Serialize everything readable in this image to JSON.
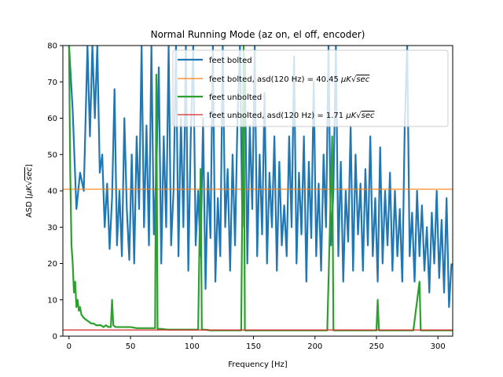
{
  "chart_data": {
    "type": "line",
    "title": "Normal Running Mode (az on, el off, encoder)",
    "xlabel": "Frequency [Hz]",
    "ylabel_main": "ASD [",
    "ylabel_mu": "μ",
    "ylabel_unit": "K",
    "ylabel_sqrt": "√",
    "ylabel_sec": "sec",
    "ylabel_close": "]",
    "xlim": [
      -5,
      312
    ],
    "ylim": [
      0,
      80
    ],
    "x_ticks": [
      0,
      50,
      100,
      150,
      200,
      250,
      300
    ],
    "y_ticks": [
      0,
      10,
      20,
      30,
      40,
      50,
      60,
      70,
      80
    ],
    "x_tick_labels": [
      "0",
      "50",
      "100",
      "150",
      "200",
      "250",
      "300"
    ],
    "y_tick_labels": [
      "0",
      "10",
      "20",
      "30",
      "40",
      "50",
      "60",
      "70",
      "80"
    ],
    "legend_position": "upper-right",
    "grid": false,
    "series": [
      {
        "name": "feet bolted",
        "color": "#1f77b4",
        "points": [
          [
            0,
            80
          ],
          [
            3,
            62
          ],
          [
            6,
            35
          ],
          [
            9,
            45
          ],
          [
            12,
            40
          ],
          [
            15,
            80
          ],
          [
            17,
            55
          ],
          [
            19,
            80
          ],
          [
            21,
            60
          ],
          [
            23,
            80
          ],
          [
            25,
            45
          ],
          [
            27,
            50
          ],
          [
            29,
            30
          ],
          [
            31,
            42
          ],
          [
            33,
            24
          ],
          [
            35,
            38
          ],
          [
            37,
            68
          ],
          [
            39,
            25
          ],
          [
            41,
            40
          ],
          [
            43,
            22
          ],
          [
            45,
            60
          ],
          [
            47,
            35
          ],
          [
            49,
            21
          ],
          [
            51,
            50
          ],
          [
            53,
            20
          ],
          [
            55,
            55
          ],
          [
            57,
            35
          ],
          [
            59,
            80
          ],
          [
            61,
            30
          ],
          [
            63,
            58
          ],
          [
            65,
            25
          ],
          [
            67,
            80
          ],
          [
            69,
            28
          ],
          [
            71,
            45
          ],
          [
            73,
            74
          ],
          [
            75,
            20
          ],
          [
            77,
            55
          ],
          [
            79,
            30
          ],
          [
            81,
            80
          ],
          [
            83,
            25
          ],
          [
            85,
            40
          ],
          [
            87,
            80
          ],
          [
            89,
            22
          ],
          [
            91,
            60
          ],
          [
            93,
            30
          ],
          [
            95,
            80
          ],
          [
            97,
            18
          ],
          [
            99,
            55
          ],
          [
            101,
            80
          ],
          [
            103,
            25
          ],
          [
            105,
            40
          ],
          [
            107,
            22
          ],
          [
            109,
            60
          ],
          [
            111,
            13
          ],
          [
            113,
            45
          ],
          [
            115,
            27
          ],
          [
            117,
            80
          ],
          [
            119,
            15
          ],
          [
            121,
            38
          ],
          [
            123,
            22
          ],
          [
            125,
            80
          ],
          [
            127,
            30
          ],
          [
            129,
            46
          ],
          [
            131,
            18
          ],
          [
            133,
            50
          ],
          [
            135,
            25
          ],
          [
            137,
            60
          ],
          [
            139,
            80
          ],
          [
            141,
            30
          ],
          [
            143,
            76
          ],
          [
            145,
            20
          ],
          [
            147,
            58
          ],
          [
            149,
            35
          ],
          [
            151,
            80
          ],
          [
            153,
            22
          ],
          [
            155,
            50
          ],
          [
            157,
            28
          ],
          [
            159,
            67
          ],
          [
            161,
            20
          ],
          [
            163,
            45
          ],
          [
            165,
            30
          ],
          [
            167,
            55
          ],
          [
            169,
            18
          ],
          [
            171,
            48
          ],
          [
            173,
            25
          ],
          [
            175,
            36
          ],
          [
            177,
            22
          ],
          [
            179,
            55
          ],
          [
            181,
            30
          ],
          [
            183,
            77
          ],
          [
            185,
            20
          ],
          [
            187,
            45
          ],
          [
            189,
            28
          ],
          [
            191,
            55
          ],
          [
            193,
            15
          ],
          [
            195,
            48
          ],
          [
            197,
            27
          ],
          [
            199,
            70
          ],
          [
            201,
            22
          ],
          [
            203,
            42
          ],
          [
            205,
            18
          ],
          [
            207,
            50
          ],
          [
            209,
            30
          ],
          [
            211,
            80
          ],
          [
            213,
            25
          ],
          [
            215,
            40
          ],
          [
            217,
            80
          ],
          [
            219,
            22
          ],
          [
            221,
            48
          ],
          [
            223,
            15
          ],
          [
            225,
            40
          ],
          [
            227,
            26
          ],
          [
            229,
            58
          ],
          [
            231,
            18
          ],
          [
            233,
            50
          ],
          [
            235,
            28
          ],
          [
            237,
            42
          ],
          [
            239,
            18
          ],
          [
            241,
            46
          ],
          [
            243,
            25
          ],
          [
            245,
            55
          ],
          [
            247,
            22
          ],
          [
            249,
            38
          ],
          [
            251,
            15
          ],
          [
            253,
            52
          ],
          [
            255,
            20
          ],
          [
            257,
            40
          ],
          [
            259,
            25
          ],
          [
            261,
            45
          ],
          [
            263,
            18
          ],
          [
            265,
            40
          ],
          [
            267,
            22
          ],
          [
            269,
            35
          ],
          [
            271,
            15
          ],
          [
            273,
            58
          ],
          [
            275,
            80
          ],
          [
            277,
            22
          ],
          [
            279,
            34
          ],
          [
            281,
            15
          ],
          [
            283,
            40
          ],
          [
            285,
            22
          ],
          [
            287,
            36
          ],
          [
            289,
            18
          ],
          [
            291,
            30
          ],
          [
            293,
            12
          ],
          [
            295,
            34
          ],
          [
            297,
            20
          ],
          [
            299,
            40
          ],
          [
            301,
            16
          ],
          [
            303,
            32
          ],
          [
            305,
            12
          ],
          [
            307,
            38
          ],
          [
            309,
            8
          ],
          [
            311,
            20
          ]
        ]
      },
      {
        "name": "feet bolted, asd(120 Hz) = 40.45 ",
        "name_mu": "μ",
        "name_unit": "K",
        "name_sqrt": "√",
        "name_sec": "sec",
        "color": "#ff7f0e",
        "constant": 40.45
      },
      {
        "name": "feet unbolted",
        "color": "#2ca02c",
        "points": [
          [
            0,
            80
          ],
          [
            1,
            45
          ],
          [
            2,
            25
          ],
          [
            3,
            20
          ],
          [
            4,
            12
          ],
          [
            5,
            15
          ],
          [
            6,
            8
          ],
          [
            7,
            10
          ],
          [
            8,
            7
          ],
          [
            9,
            8
          ],
          [
            10,
            6
          ],
          [
            12,
            5
          ],
          [
            14,
            4.5
          ],
          [
            16,
            4
          ],
          [
            18,
            3.5
          ],
          [
            20,
            3.5
          ],
          [
            22,
            3
          ],
          [
            24,
            3
          ],
          [
            26,
            3
          ],
          [
            28,
            2.5
          ],
          [
            30,
            3
          ],
          [
            32,
            2.5
          ],
          [
            34,
            2.5
          ],
          [
            35,
            10
          ],
          [
            36,
            3
          ],
          [
            38,
            2.5
          ],
          [
            40,
            2.5
          ],
          [
            45,
            2.5
          ],
          [
            50,
            2.5
          ],
          [
            55,
            2.2
          ],
          [
            60,
            2.2
          ],
          [
            65,
            2.2
          ],
          [
            70,
            2.2
          ],
          [
            71,
            72
          ],
          [
            72,
            2
          ],
          [
            75,
            2
          ],
          [
            80,
            1.8
          ],
          [
            85,
            1.8
          ],
          [
            90,
            1.8
          ],
          [
            95,
            1.8
          ],
          [
            100,
            1.8
          ],
          [
            105,
            1.8
          ],
          [
            107,
            46
          ],
          [
            108,
            1.8
          ],
          [
            110,
            1.8
          ],
          [
            115,
            1.6
          ],
          [
            120,
            1.6
          ],
          [
            125,
            1.6
          ],
          [
            130,
            1.6
          ],
          [
            135,
            1.6
          ],
          [
            140,
            1.6
          ],
          [
            142,
            80
          ],
          [
            143,
            1.6
          ],
          [
            145,
            1.6
          ],
          [
            150,
            1.6
          ],
          [
            160,
            1.6
          ],
          [
            170,
            1.6
          ],
          [
            180,
            1.6
          ],
          [
            190,
            1.6
          ],
          [
            200,
            1.6
          ],
          [
            210,
            1.6
          ],
          [
            214,
            55
          ],
          [
            215,
            1.6
          ],
          [
            220,
            1.6
          ],
          [
            230,
            1.6
          ],
          [
            240,
            1.6
          ],
          [
            250,
            1.6
          ],
          [
            251,
            10
          ],
          [
            252,
            1.6
          ],
          [
            260,
            1.6
          ],
          [
            270,
            1.6
          ],
          [
            280,
            1.6
          ],
          [
            285,
            15
          ],
          [
            286,
            1.6
          ],
          [
            290,
            1.6
          ],
          [
            300,
            1.6
          ],
          [
            312,
            1.6
          ]
        ]
      },
      {
        "name": "feet unbolted, asd(120 Hz) = 1.71 ",
        "name_mu": "μ",
        "name_unit": "K",
        "name_sqrt": "√",
        "name_sec": "sec",
        "color": "#d62728",
        "constant": 1.71
      }
    ]
  }
}
